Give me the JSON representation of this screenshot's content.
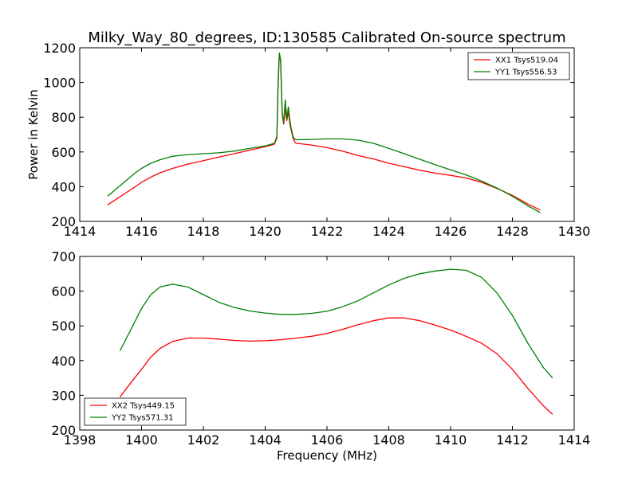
{
  "figure": {
    "title": "Milky_Way_80_degrees, ID:130585 Calibrated On-source spectrum"
  },
  "chart_data": [
    {
      "type": "line",
      "title": "Milky_Way_80_degrees, ID:130585 Calibrated On-source spectrum",
      "xlabel": "",
      "ylabel": "Power in Kelvin",
      "xlim": [
        1414,
        1430
      ],
      "ylim": [
        200,
        1200
      ],
      "x_ticks": [
        1414,
        1416,
        1418,
        1420,
        1422,
        1424,
        1426,
        1428,
        1430
      ],
      "y_ticks": [
        200,
        400,
        600,
        800,
        1000,
        1200
      ],
      "grid": false,
      "legend": "top-right",
      "series": [
        {
          "name": "XX1 Tsys519.04",
          "color": "#ff0000",
          "x": [
            1414.9,
            1415.2,
            1415.5,
            1415.8,
            1416.0,
            1416.3,
            1416.6,
            1417.0,
            1417.5,
            1418.0,
            1418.5,
            1419.0,
            1419.5,
            1420.0,
            1420.3,
            1420.38,
            1420.42,
            1420.46,
            1420.5,
            1420.55,
            1420.6,
            1420.65,
            1420.7,
            1420.75,
            1420.8,
            1420.85,
            1420.9,
            1420.95,
            1421.0,
            1421.5,
            1422.0,
            1422.5,
            1423.0,
            1423.5,
            1424.0,
            1424.5,
            1425.0,
            1425.5,
            1426.0,
            1426.5,
            1427.0,
            1427.5,
            1428.0,
            1428.5,
            1428.9
          ],
          "y": [
            295,
            330,
            365,
            400,
            425,
            455,
            480,
            505,
            530,
            550,
            570,
            590,
            610,
            630,
            645,
            680,
            1000,
            1160,
            1120,
            820,
            760,
            850,
            780,
            830,
            760,
            720,
            680,
            660,
            650,
            640,
            625,
            605,
            580,
            560,
            535,
            515,
            495,
            478,
            465,
            450,
            425,
            390,
            350,
            300,
            265
          ]
        },
        {
          "name": "YY1 Tsys556.53",
          "color": "#008000",
          "x": [
            1414.9,
            1415.2,
            1415.5,
            1415.8,
            1416.0,
            1416.3,
            1416.6,
            1417.0,
            1417.5,
            1418.0,
            1418.5,
            1419.0,
            1419.5,
            1420.0,
            1420.3,
            1420.38,
            1420.42,
            1420.46,
            1420.5,
            1420.55,
            1420.6,
            1420.65,
            1420.7,
            1420.75,
            1420.8,
            1420.85,
            1420.9,
            1420.95,
            1421.0,
            1421.5,
            1422.0,
            1422.5,
            1423.0,
            1423.5,
            1424.0,
            1424.5,
            1425.0,
            1425.5,
            1426.0,
            1426.5,
            1427.0,
            1427.5,
            1428.0,
            1428.5,
            1428.9
          ],
          "y": [
            345,
            390,
            435,
            480,
            505,
            535,
            555,
            575,
            585,
            590,
            595,
            605,
            620,
            635,
            650,
            690,
            1020,
            1170,
            1130,
            830,
            770,
            900,
            790,
            860,
            780,
            730,
            690,
            675,
            670,
            672,
            675,
            675,
            668,
            650,
            620,
            590,
            558,
            527,
            497,
            468,
            432,
            392,
            345,
            290,
            250
          ]
        }
      ]
    },
    {
      "type": "line",
      "title": "",
      "xlabel": "Frequency (MHz)",
      "ylabel": "",
      "xlim": [
        1398,
        1414
      ],
      "ylim": [
        200,
        700
      ],
      "x_ticks": [
        1398,
        1400,
        1402,
        1404,
        1406,
        1408,
        1410,
        1412,
        1414
      ],
      "y_ticks": [
        200,
        300,
        400,
        500,
        600,
        700
      ],
      "grid": false,
      "legend": "bottom-left",
      "series": [
        {
          "name": "XX2 Tsys449.15",
          "color": "#ff0000",
          "x": [
            1399.3,
            1399.6,
            1400.0,
            1400.3,
            1400.6,
            1401.0,
            1401.5,
            1402.0,
            1402.5,
            1403.0,
            1403.5,
            1404.0,
            1404.5,
            1405.0,
            1405.5,
            1406.0,
            1406.5,
            1407.0,
            1407.5,
            1408.0,
            1408.5,
            1409.0,
            1409.5,
            1410.0,
            1410.5,
            1411.0,
            1411.5,
            1412.0,
            1412.5,
            1413.0,
            1413.3
          ],
          "y": [
            295,
            330,
            375,
            410,
            435,
            455,
            465,
            465,
            462,
            458,
            456,
            457,
            460,
            465,
            470,
            478,
            490,
            503,
            515,
            523,
            523,
            515,
            502,
            488,
            470,
            450,
            420,
            375,
            320,
            270,
            245
          ]
        },
        {
          "name": "YY2 Tsys571.31",
          "color": "#008000",
          "x": [
            1399.3,
            1399.6,
            1400.0,
            1400.3,
            1400.6,
            1401.0,
            1401.5,
            1402.0,
            1402.5,
            1403.0,
            1403.5,
            1404.0,
            1404.5,
            1405.0,
            1405.5,
            1406.0,
            1406.5,
            1407.0,
            1407.5,
            1408.0,
            1408.5,
            1409.0,
            1409.5,
            1410.0,
            1410.5,
            1411.0,
            1411.5,
            1412.0,
            1412.5,
            1413.0,
            1413.3
          ],
          "y": [
            428,
            480,
            550,
            590,
            612,
            620,
            612,
            590,
            568,
            553,
            543,
            537,
            533,
            533,
            536,
            542,
            555,
            572,
            595,
            618,
            637,
            650,
            658,
            663,
            660,
            640,
            595,
            530,
            450,
            380,
            350
          ]
        }
      ]
    }
  ]
}
